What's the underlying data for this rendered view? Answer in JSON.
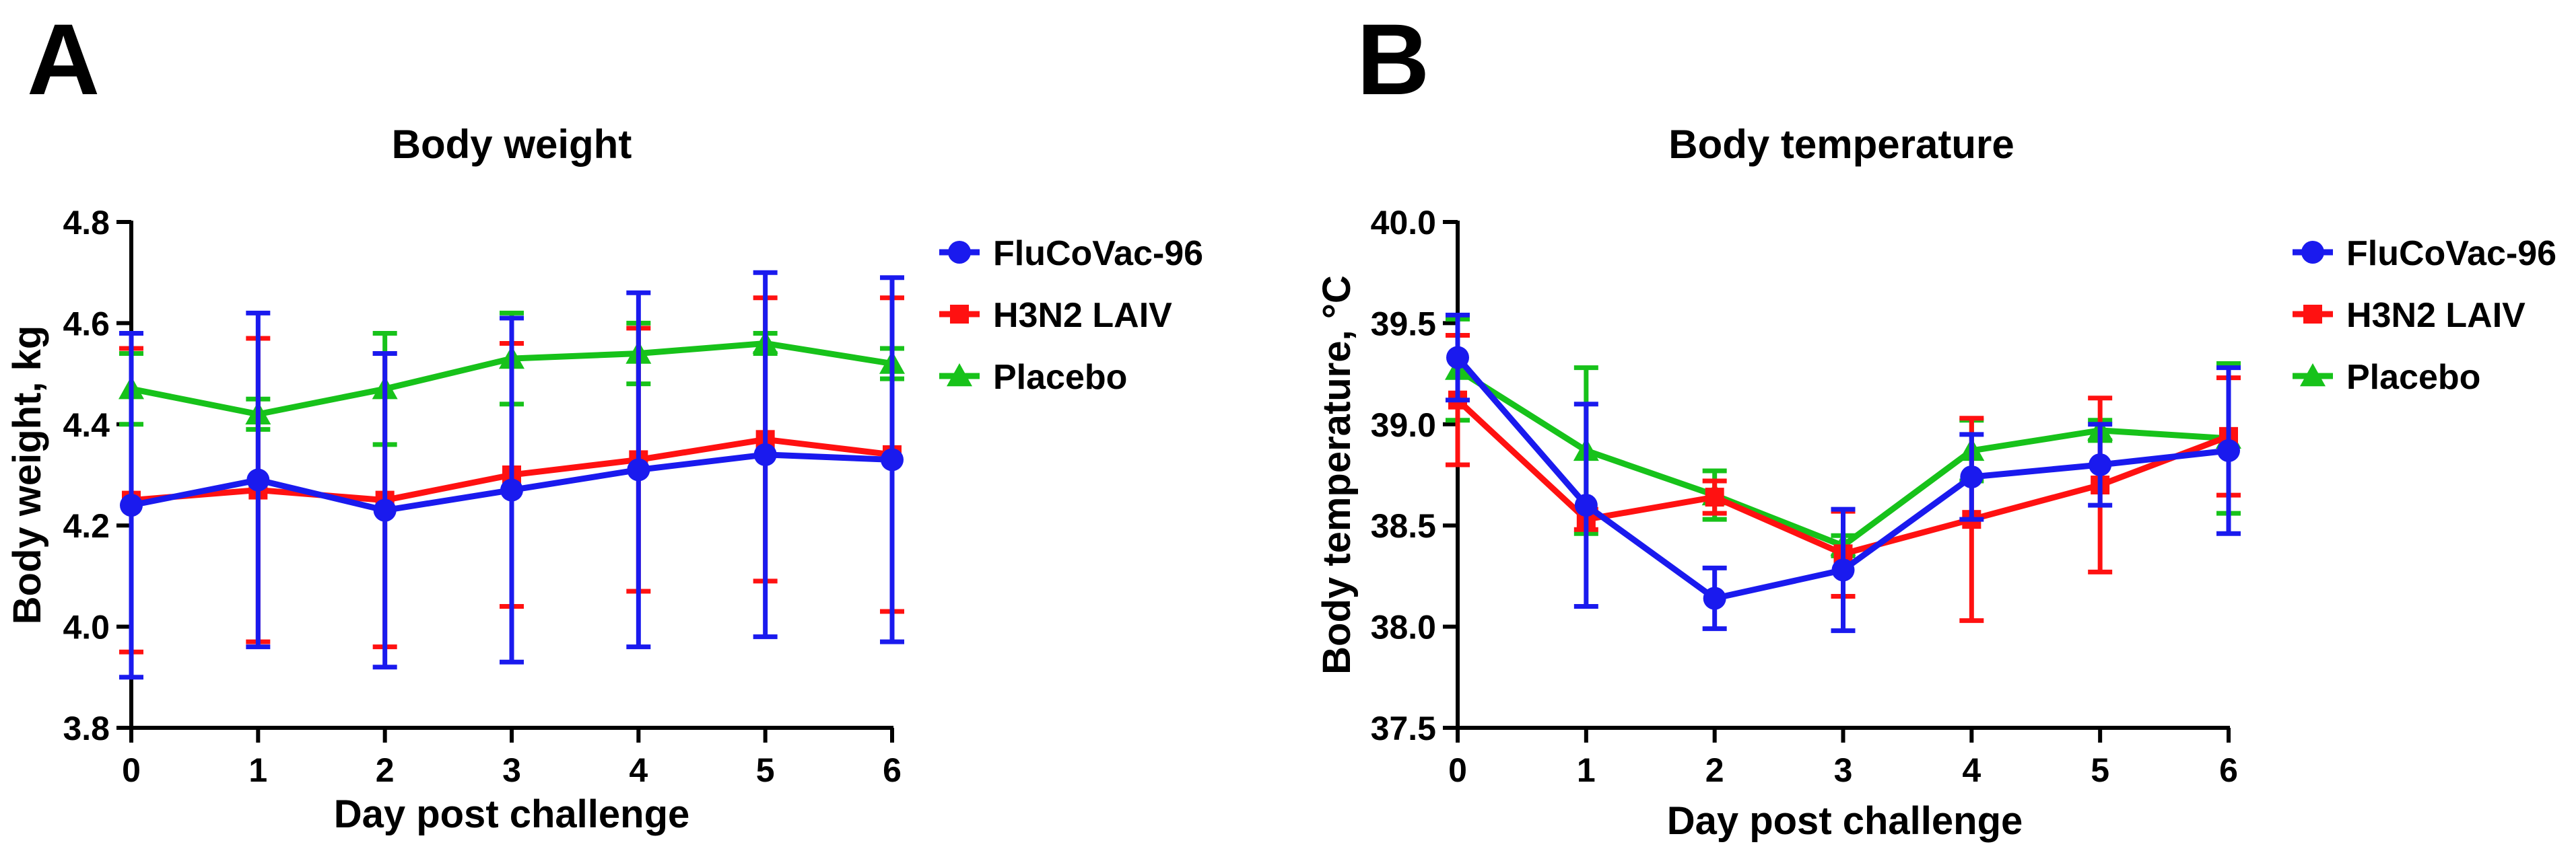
{
  "panels": [
    {
      "letter": "A",
      "chart_data": {
        "type": "line",
        "title": "Body weight",
        "xlabel": "Day post challenge",
        "ylabel": "Body weight, kg",
        "x": [
          0,
          1,
          2,
          3,
          4,
          5,
          6
        ],
        "xlim": [
          0,
          6
        ],
        "ylim": [
          3.8,
          4.8
        ],
        "xticks": [
          "0",
          "1",
          "2",
          "3",
          "4",
          "5",
          "6"
        ],
        "yticks": [
          "3.8",
          "4.0",
          "4.2",
          "4.4",
          "4.6",
          "4.8"
        ],
        "grid": false,
        "legend_position": "right",
        "series": [
          {
            "name": "Placebo",
            "color": "#17c21a",
            "marker": "triangle",
            "values": [
              4.47,
              4.42,
              4.47,
              4.53,
              4.54,
              4.56,
              4.52
            ],
            "err": [
              0.07,
              0.03,
              0.11,
              0.09,
              0.06,
              0.02,
              0.03
            ]
          },
          {
            "name": "H3N2 LAIV",
            "color": "#ff1111",
            "marker": "square",
            "values": [
              4.25,
              4.27,
              4.25,
              4.3,
              4.33,
              4.37,
              4.34
            ],
            "err": [
              0.3,
              0.3,
              0.29,
              0.26,
              0.26,
              0.28,
              0.31
            ]
          },
          {
            "name": "FluCoVac-96",
            "color": "#1a1aee",
            "marker": "circle",
            "values": [
              4.24,
              4.29,
              4.23,
              4.27,
              4.31,
              4.34,
              4.33
            ],
            "err": [
              0.34,
              0.33,
              0.31,
              0.34,
              0.35,
              0.36,
              0.36
            ]
          }
        ],
        "legend": [
          "FluCoVac-96",
          "H3N2 LAIV",
          "Placebo"
        ]
      }
    },
    {
      "letter": "B",
      "chart_data": {
        "type": "line",
        "title": "Body temperature",
        "xlabel": "Day post challenge",
        "ylabel": "Body temperature, °C",
        "x": [
          0,
          1,
          2,
          3,
          4,
          5,
          6
        ],
        "xlim": [
          0,
          6
        ],
        "ylim": [
          37.5,
          40.0
        ],
        "xticks": [
          "0",
          "1",
          "2",
          "3",
          "4",
          "5",
          "6"
        ],
        "yticks": [
          "37.5",
          "38.0",
          "38.5",
          "39.0",
          "39.5",
          "40.0"
        ],
        "grid": false,
        "legend_position": "right",
        "series": [
          {
            "name": "Placebo",
            "color": "#17c21a",
            "marker": "triangle",
            "values": [
              39.27,
              38.87,
              38.65,
              38.4,
              38.87,
              38.97,
              38.93
            ],
            "err": [
              0.25,
              0.41,
              0.12,
              0.05,
              0.15,
              0.05,
              0.37
            ]
          },
          {
            "name": "H3N2 LAIV",
            "color": "#ff1111",
            "marker": "square",
            "values": [
              39.12,
              38.53,
              38.64,
              38.36,
              38.53,
              38.7,
              38.94
            ],
            "err": [
              0.32,
              0.05,
              0.08,
              0.21,
              0.5,
              0.43,
              0.29
            ]
          },
          {
            "name": "FluCoVac-96",
            "color": "#1a1aee",
            "marker": "circle",
            "values": [
              39.33,
              38.6,
              38.14,
              38.28,
              38.74,
              38.8,
              38.87
            ],
            "err": [
              0.21,
              0.5,
              0.15,
              0.3,
              0.21,
              0.2,
              0.41
            ]
          }
        ],
        "legend": [
          "FluCoVac-96",
          "H3N2 LAIV",
          "Placebo"
        ]
      }
    }
  ]
}
